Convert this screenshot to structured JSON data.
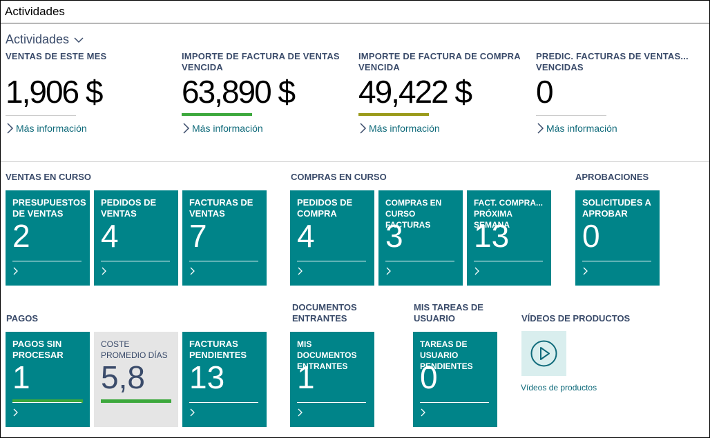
{
  "window": {
    "title": "Actividades"
  },
  "section": {
    "title": "Actividades"
  },
  "kpis": [
    {
      "label": "VENTAS DE ESTE MES",
      "value": "1,906 $",
      "bar_color": "#cccccc",
      "more": "Más información"
    },
    {
      "label": "IMPORTE DE FACTURA DE VENTAS VENCIDA",
      "value": "63,890 $",
      "bar_color": "#3ca83c",
      "more": "Más información"
    },
    {
      "label": "IMPORTE DE FACTURA DE COMPRA VENCIDA",
      "value": "49,422 $",
      "bar_color": "#9a9a1a",
      "more": "Más información"
    },
    {
      "label": "PREDIC. FACTURAS DE VENTAS... VENCIDAS",
      "value": "0",
      "bar_color": "#cccccc",
      "more": "Más información"
    }
  ],
  "groups": {
    "ventas": "VENTAS EN CURSO",
    "compras": "COMPRAS EN CURSO",
    "aprobaciones": "APROBACIONES",
    "pagos": "PAGOS",
    "documentos": "DOCUMENTOS ENTRANTES",
    "tareas": "MIS TAREAS DE USUARIO",
    "videos": "VÍDEOS DE PRODUCTOS"
  },
  "tiles": {
    "presupuestos": {
      "label": "PRESUPUESTOS DE VENTAS",
      "value": "2"
    },
    "pedidos_ventas": {
      "label": "PEDIDOS DE VENTAS",
      "value": "4"
    },
    "facturas_ventas": {
      "label": "FACTURAS DE VENTAS",
      "value": "7"
    },
    "pedidos_compra": {
      "label": "PEDIDOS DE COMPRA",
      "value": "4"
    },
    "compras_curso": {
      "label": "COMPRAS EN CURSO FACTURAS",
      "value": "3"
    },
    "fact_compra": {
      "label": "FACT. COMPRA... PRÓXIMA SEMANA",
      "value": "13"
    },
    "solicitudes": {
      "label": "SOLICITUDES A APROBAR",
      "value": "0"
    },
    "pagos_sin": {
      "label": "PAGOS SIN PROCESAR",
      "value": "1"
    },
    "coste": {
      "label": "COSTE PROMEDIO DÍAS",
      "value": "5,8"
    },
    "facturas_pend": {
      "label": "FACTURAS PENDIENTES",
      "value": "13"
    },
    "mis_docs": {
      "label": "MIS DOCUMENTOS ENTRANTES",
      "value": "1"
    },
    "tareas_pend": {
      "label": "TAREAS DE USUARIO PENDIENTES",
      "value": "0"
    }
  },
  "video": {
    "link": "Vídeos de productos",
    "icon": "play-icon"
  }
}
